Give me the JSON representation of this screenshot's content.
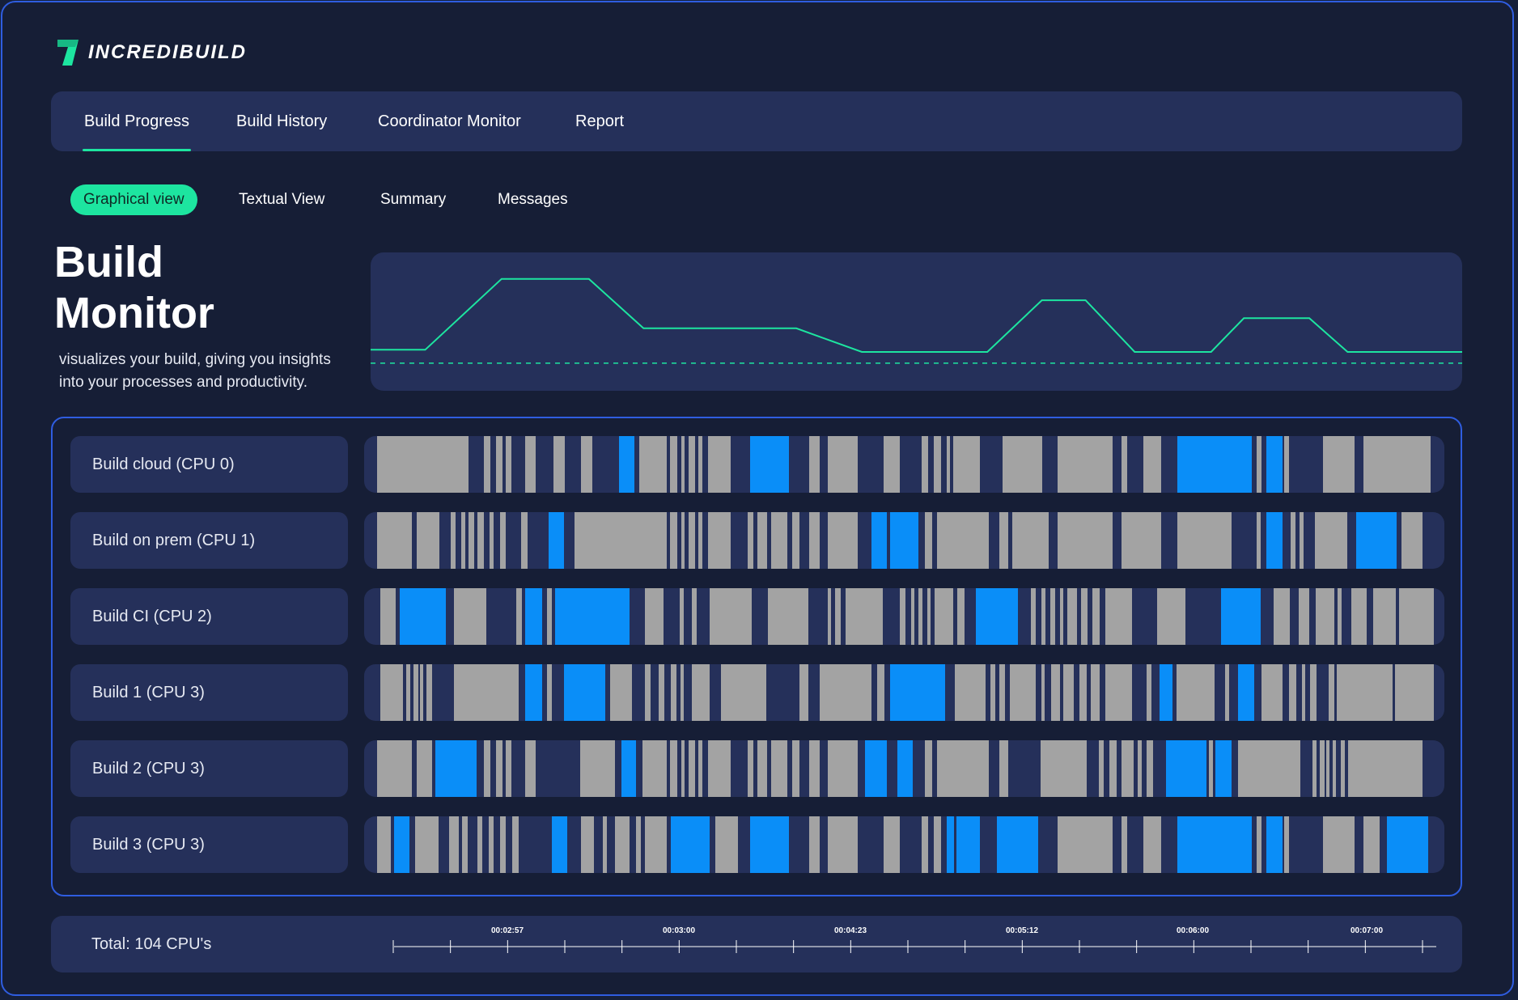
{
  "brand": {
    "name": "INCREDIBUILD",
    "accent": "#1de5a0",
    "logo_icon": "incredibuild-logo-icon"
  },
  "nav": {
    "tabs": [
      {
        "label": "Build Progress",
        "active": true
      },
      {
        "label": "Build History",
        "active": false
      },
      {
        "label": "Coordinator Monitor",
        "active": false
      },
      {
        "label": "Report",
        "active": false
      }
    ]
  },
  "subnav": {
    "tabs": [
      {
        "label": "Graphical view",
        "active": true
      },
      {
        "label": "Textual View",
        "active": false
      },
      {
        "label": "Summary",
        "active": false
      },
      {
        "label": "Messages",
        "active": false
      }
    ]
  },
  "hero": {
    "title": "Build\nMonitor",
    "description": "visualizes your build, giving you insights into your processes and productivity."
  },
  "colors": {
    "background": "#161e36",
    "panel": "#25305a",
    "border": "#2f5de0",
    "task_idle": "#a3a3a3",
    "task_active": "#0a8ef8",
    "line": "#1de5a0"
  },
  "chart_data": {
    "type": "line",
    "x": [
      0,
      0.05,
      0.12,
      0.2,
      0.25,
      0.39,
      0.45,
      0.56,
      0.565,
      0.615,
      0.655,
      0.7,
      0.77,
      0.8,
      0.86,
      0.895,
      1.0
    ],
    "values": [
      0.25,
      0.25,
      0.88,
      0.88,
      0.44,
      0.44,
      0.23,
      0.23,
      0.23,
      0.69,
      0.69,
      0.23,
      0.23,
      0.53,
      0.53,
      0.23,
      0.23
    ],
    "baseline": 0.13,
    "ylim": [
      0,
      1
    ]
  },
  "cpu_lanes": [
    {
      "label": "Build cloud (CPU 0)",
      "segments": [
        [
          0.012,
          0.097,
          "idle"
        ],
        [
          0.111,
          0.117,
          "idle"
        ],
        [
          0.122,
          0.128,
          "idle"
        ],
        [
          0.131,
          0.136,
          "idle"
        ],
        [
          0.149,
          0.159,
          "idle"
        ],
        [
          0.175,
          0.186,
          "idle"
        ],
        [
          0.201,
          0.211,
          "idle"
        ],
        [
          0.236,
          0.25,
          "active"
        ],
        [
          0.255,
          0.28,
          "idle"
        ],
        [
          0.283,
          0.29,
          "idle"
        ],
        [
          0.294,
          0.297,
          "idle"
        ],
        [
          0.3,
          0.306,
          "idle"
        ],
        [
          0.309,
          0.313,
          "idle"
        ],
        [
          0.318,
          0.339,
          "idle"
        ],
        [
          0.357,
          0.393,
          "active"
        ],
        [
          0.412,
          0.422,
          "idle"
        ],
        [
          0.429,
          0.457,
          "idle"
        ],
        [
          0.481,
          0.496,
          "idle"
        ],
        [
          0.516,
          0.522,
          "idle"
        ],
        [
          0.527,
          0.534,
          "idle"
        ],
        [
          0.539,
          0.542,
          "idle"
        ],
        [
          0.545,
          0.57,
          "idle"
        ],
        [
          0.591,
          0.628,
          "idle"
        ],
        [
          0.642,
          0.693,
          "idle"
        ],
        [
          0.701,
          0.706,
          "idle"
        ],
        [
          0.721,
          0.738,
          "idle"
        ],
        [
          0.753,
          0.822,
          "active"
        ],
        [
          0.826,
          0.831,
          "idle"
        ],
        [
          0.835,
          0.85,
          "active"
        ],
        [
          0.852,
          0.856,
          "idle"
        ],
        [
          0.888,
          0.917,
          "idle"
        ],
        [
          0.925,
          0.987,
          "idle"
        ]
      ]
    },
    {
      "label": "Build on prem (CPU 1)",
      "segments": [
        [
          0.012,
          0.044,
          "idle"
        ],
        [
          0.049,
          0.07,
          "idle"
        ],
        [
          0.08,
          0.085,
          "idle"
        ],
        [
          0.09,
          0.094,
          "idle"
        ],
        [
          0.097,
          0.102,
          "idle"
        ],
        [
          0.105,
          0.111,
          "idle"
        ],
        [
          0.116,
          0.12,
          "idle"
        ],
        [
          0.126,
          0.131,
          "idle"
        ],
        [
          0.145,
          0.151,
          "idle"
        ],
        [
          0.171,
          0.185,
          "active"
        ],
        [
          0.195,
          0.28,
          "idle"
        ],
        [
          0.283,
          0.29,
          "idle"
        ],
        [
          0.294,
          0.297,
          "idle"
        ],
        [
          0.3,
          0.306,
          "idle"
        ],
        [
          0.309,
          0.313,
          "idle"
        ],
        [
          0.318,
          0.339,
          "idle"
        ],
        [
          0.355,
          0.36,
          "idle"
        ],
        [
          0.364,
          0.373,
          "idle"
        ],
        [
          0.377,
          0.392,
          "idle"
        ],
        [
          0.396,
          0.403,
          "idle"
        ],
        [
          0.412,
          0.422,
          "idle"
        ],
        [
          0.429,
          0.457,
          "idle"
        ],
        [
          0.47,
          0.484,
          "active"
        ],
        [
          0.487,
          0.513,
          "active"
        ],
        [
          0.519,
          0.526,
          "idle"
        ],
        [
          0.53,
          0.578,
          "idle"
        ],
        [
          0.588,
          0.596,
          "idle"
        ],
        [
          0.6,
          0.634,
          "idle"
        ],
        [
          0.642,
          0.693,
          "idle"
        ],
        [
          0.701,
          0.738,
          "idle"
        ],
        [
          0.753,
          0.803,
          "idle"
        ],
        [
          0.826,
          0.83,
          "idle"
        ],
        [
          0.835,
          0.85,
          "active"
        ],
        [
          0.858,
          0.862,
          "idle"
        ],
        [
          0.866,
          0.87,
          "idle"
        ],
        [
          0.88,
          0.91,
          "idle"
        ],
        [
          0.918,
          0.956,
          "active"
        ],
        [
          0.96,
          0.98,
          "idle"
        ]
      ]
    },
    {
      "label": "Build CI (CPU 2)",
      "segments": [
        [
          0.015,
          0.029,
          "idle"
        ],
        [
          0.033,
          0.076,
          "active"
        ],
        [
          0.083,
          0.113,
          "idle"
        ],
        [
          0.141,
          0.146,
          "idle"
        ],
        [
          0.149,
          0.165,
          "active"
        ],
        [
          0.169,
          0.174,
          "idle"
        ],
        [
          0.177,
          0.246,
          "active"
        ],
        [
          0.26,
          0.277,
          "idle"
        ],
        [
          0.292,
          0.296,
          "idle"
        ],
        [
          0.303,
          0.308,
          "idle"
        ],
        [
          0.32,
          0.359,
          "idle"
        ],
        [
          0.374,
          0.411,
          "idle"
        ],
        [
          0.429,
          0.432,
          "idle"
        ],
        [
          0.436,
          0.441,
          "idle"
        ],
        [
          0.446,
          0.48,
          "idle"
        ],
        [
          0.496,
          0.501,
          "idle"
        ],
        [
          0.506,
          0.509,
          "idle"
        ],
        [
          0.513,
          0.517,
          "idle"
        ],
        [
          0.521,
          0.524,
          "idle"
        ],
        [
          0.528,
          0.545,
          "idle"
        ],
        [
          0.549,
          0.556,
          "idle"
        ],
        [
          0.566,
          0.605,
          "active"
        ],
        [
          0.617,
          0.622,
          "idle"
        ],
        [
          0.627,
          0.631,
          "idle"
        ],
        [
          0.635,
          0.64,
          "idle"
        ],
        [
          0.644,
          0.647,
          "idle"
        ],
        [
          0.651,
          0.66,
          "idle"
        ],
        [
          0.664,
          0.67,
          "idle"
        ],
        [
          0.674,
          0.681,
          "idle"
        ],
        [
          0.686,
          0.711,
          "idle"
        ],
        [
          0.734,
          0.76,
          "idle"
        ],
        [
          0.793,
          0.83,
          "active"
        ],
        [
          0.842,
          0.857,
          "idle"
        ],
        [
          0.865,
          0.875,
          "idle"
        ],
        [
          0.881,
          0.898,
          "idle"
        ],
        [
          0.901,
          0.905,
          "idle"
        ],
        [
          0.914,
          0.928,
          "idle"
        ],
        [
          0.934,
          0.955,
          "idle"
        ],
        [
          0.958,
          0.99,
          "idle"
        ]
      ]
    },
    {
      "label": "Build 1 (CPU 3)",
      "segments": [
        [
          0.015,
          0.036,
          "idle"
        ],
        [
          0.039,
          0.043,
          "idle"
        ],
        [
          0.046,
          0.05,
          "idle"
        ],
        [
          0.052,
          0.055,
          "idle"
        ],
        [
          0.058,
          0.063,
          "idle"
        ],
        [
          0.083,
          0.143,
          "idle"
        ],
        [
          0.149,
          0.165,
          "active"
        ],
        [
          0.169,
          0.174,
          "idle"
        ],
        [
          0.185,
          0.223,
          "active"
        ],
        [
          0.228,
          0.248,
          "idle"
        ],
        [
          0.26,
          0.265,
          "idle"
        ],
        [
          0.273,
          0.278,
          "idle"
        ],
        [
          0.284,
          0.289,
          "idle"
        ],
        [
          0.293,
          0.296,
          "idle"
        ],
        [
          0.303,
          0.32,
          "idle"
        ],
        [
          0.33,
          0.372,
          "idle"
        ],
        [
          0.403,
          0.411,
          "idle"
        ],
        [
          0.422,
          0.47,
          "idle"
        ],
        [
          0.475,
          0.482,
          "idle"
        ],
        [
          0.487,
          0.538,
          "active"
        ],
        [
          0.547,
          0.575,
          "idle"
        ],
        [
          0.58,
          0.584,
          "idle"
        ],
        [
          0.588,
          0.593,
          "idle"
        ],
        [
          0.598,
          0.622,
          "idle"
        ],
        [
          0.627,
          0.63,
          "idle"
        ],
        [
          0.636,
          0.644,
          "idle"
        ],
        [
          0.647,
          0.657,
          "idle"
        ],
        [
          0.662,
          0.669,
          "idle"
        ],
        [
          0.673,
          0.681,
          "idle"
        ],
        [
          0.686,
          0.711,
          "idle"
        ],
        [
          0.724,
          0.729,
          "idle"
        ],
        [
          0.736,
          0.748,
          "active"
        ],
        [
          0.752,
          0.787,
          "idle"
        ],
        [
          0.797,
          0.801,
          "idle"
        ],
        [
          0.809,
          0.824,
          "active"
        ],
        [
          0.831,
          0.85,
          "idle"
        ],
        [
          0.856,
          0.863,
          "idle"
        ],
        [
          0.868,
          0.871,
          "idle"
        ],
        [
          0.876,
          0.882,
          "idle"
        ],
        [
          0.893,
          0.898,
          "idle"
        ],
        [
          0.9,
          0.952,
          "idle"
        ],
        [
          0.954,
          0.99,
          "idle"
        ]
      ]
    },
    {
      "label": "Build 2 (CPU 3)",
      "segments": [
        [
          0.012,
          0.044,
          "idle"
        ],
        [
          0.049,
          0.063,
          "idle"
        ],
        [
          0.066,
          0.104,
          "active"
        ],
        [
          0.111,
          0.117,
          "idle"
        ],
        [
          0.122,
          0.128,
          "idle"
        ],
        [
          0.131,
          0.136,
          "idle"
        ],
        [
          0.149,
          0.159,
          "idle"
        ],
        [
          0.2,
          0.232,
          "idle"
        ],
        [
          0.238,
          0.252,
          "active"
        ],
        [
          0.258,
          0.28,
          "idle"
        ],
        [
          0.283,
          0.29,
          "idle"
        ],
        [
          0.294,
          0.297,
          "idle"
        ],
        [
          0.3,
          0.306,
          "idle"
        ],
        [
          0.309,
          0.313,
          "idle"
        ],
        [
          0.318,
          0.339,
          "idle"
        ],
        [
          0.355,
          0.36,
          "idle"
        ],
        [
          0.364,
          0.373,
          "idle"
        ],
        [
          0.377,
          0.392,
          "idle"
        ],
        [
          0.396,
          0.403,
          "idle"
        ],
        [
          0.412,
          0.422,
          "idle"
        ],
        [
          0.429,
          0.457,
          "idle"
        ],
        [
          0.464,
          0.484,
          "active"
        ],
        [
          0.494,
          0.508,
          "active"
        ],
        [
          0.519,
          0.526,
          "idle"
        ],
        [
          0.53,
          0.578,
          "idle"
        ],
        [
          0.588,
          0.596,
          "idle"
        ],
        [
          0.626,
          0.669,
          "idle"
        ],
        [
          0.68,
          0.685,
          "idle"
        ],
        [
          0.69,
          0.697,
          "idle"
        ],
        [
          0.701,
          0.712,
          "idle"
        ],
        [
          0.716,
          0.72,
          "idle"
        ],
        [
          0.724,
          0.73,
          "idle"
        ],
        [
          0.742,
          0.78,
          "active"
        ],
        [
          0.782,
          0.786,
          "idle"
        ],
        [
          0.788,
          0.803,
          "active"
        ],
        [
          0.809,
          0.867,
          "idle"
        ],
        [
          0.878,
          0.882,
          "idle"
        ],
        [
          0.885,
          0.889,
          "idle"
        ],
        [
          0.891,
          0.894,
          "idle"
        ],
        [
          0.897,
          0.9,
          "idle"
        ],
        [
          0.904,
          0.908,
          "idle"
        ],
        [
          0.911,
          0.98,
          "idle"
        ]
      ]
    },
    {
      "label": "Build 3 (CPU 3)",
      "segments": [
        [
          0.012,
          0.025,
          "idle"
        ],
        [
          0.028,
          0.042,
          "active"
        ],
        [
          0.047,
          0.069,
          "idle"
        ],
        [
          0.079,
          0.088,
          "idle"
        ],
        [
          0.091,
          0.096,
          "idle"
        ],
        [
          0.105,
          0.109,
          "idle"
        ],
        [
          0.115,
          0.12,
          "idle"
        ],
        [
          0.126,
          0.131,
          "idle"
        ],
        [
          0.137,
          0.143,
          "idle"
        ],
        [
          0.174,
          0.188,
          "active"
        ],
        [
          0.201,
          0.213,
          "idle"
        ],
        [
          0.221,
          0.225,
          "idle"
        ],
        [
          0.232,
          0.246,
          "idle"
        ],
        [
          0.252,
          0.256,
          "idle"
        ],
        [
          0.26,
          0.28,
          "idle"
        ],
        [
          0.284,
          0.32,
          "active"
        ],
        [
          0.325,
          0.346,
          "idle"
        ],
        [
          0.357,
          0.393,
          "active"
        ],
        [
          0.412,
          0.422,
          "idle"
        ],
        [
          0.429,
          0.457,
          "idle"
        ],
        [
          0.481,
          0.496,
          "idle"
        ],
        [
          0.516,
          0.522,
          "idle"
        ],
        [
          0.527,
          0.534,
          "idle"
        ],
        [
          0.539,
          0.546,
          "active"
        ],
        [
          0.548,
          0.57,
          "active"
        ],
        [
          0.586,
          0.624,
          "active"
        ],
        [
          0.642,
          0.693,
          "idle"
        ],
        [
          0.701,
          0.706,
          "idle"
        ],
        [
          0.721,
          0.738,
          "idle"
        ],
        [
          0.753,
          0.822,
          "active"
        ],
        [
          0.826,
          0.831,
          "idle"
        ],
        [
          0.835,
          0.85,
          "active"
        ],
        [
          0.852,
          0.856,
          "idle"
        ],
        [
          0.888,
          0.917,
          "idle"
        ],
        [
          0.925,
          0.94,
          "idle"
        ],
        [
          0.947,
          0.985,
          "active"
        ]
      ]
    }
  ],
  "timeline": {
    "total_label": "Total: 104 CPU's",
    "tick_labels": [
      "00:02:57",
      "00:03:00",
      "00:04:23",
      "00:05:12",
      "00:06:00",
      "00:07:00"
    ]
  }
}
